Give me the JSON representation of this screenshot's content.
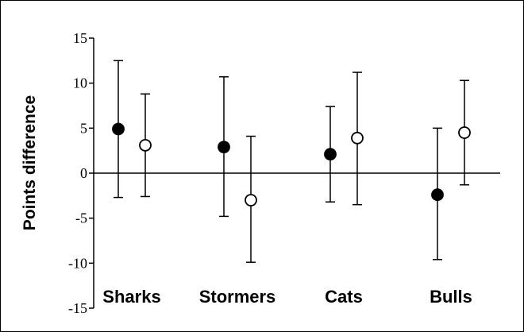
{
  "chart_data": {
    "type": "scatter",
    "ylabel": "Points difference",
    "ylim": [
      -15,
      15
    ],
    "yticks": [
      15,
      10,
      5,
      0,
      -5,
      -10,
      -15
    ],
    "zero_line": true,
    "categories": [
      "Sharks",
      "Stormers",
      "Cats",
      "Bulls"
    ],
    "series": [
      {
        "marker": "filled-circle",
        "values": [
          4.9,
          2.9,
          2.1,
          -2.4
        ],
        "error_low": [
          -2.7,
          -4.8,
          -3.2,
          -9.6
        ],
        "error_high": [
          12.5,
          10.7,
          7.4,
          5.0
        ]
      },
      {
        "marker": "open-circle",
        "values": [
          3.1,
          -3.0,
          3.9,
          4.5
        ],
        "error_low": [
          -2.6,
          -9.9,
          -3.5,
          -1.3
        ],
        "error_high": [
          8.8,
          4.1,
          11.2,
          10.3
        ]
      }
    ],
    "colors": {
      "stroke": "#000000",
      "fill_closed": "#000000",
      "fill_open": "#ffffff"
    }
  }
}
